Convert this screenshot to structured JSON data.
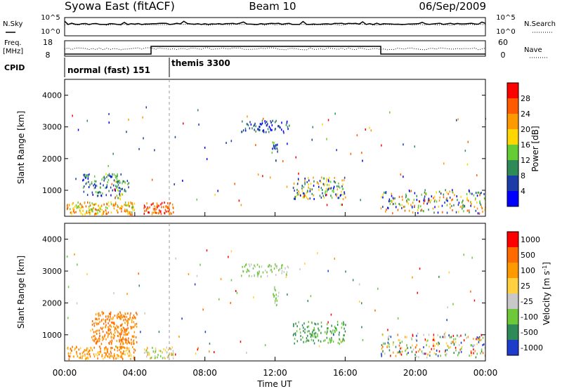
{
  "header": {
    "title_left": "Syowa East (fitACF)",
    "title_center": "Beam 10",
    "title_right": "06/Sep/2009"
  },
  "noise_panel": {
    "left_label": "N.Sky",
    "right_label": "N.Search",
    "left_ticks": [
      "10^5",
      "10^0"
    ],
    "right_ticks": [
      "10^5",
      "10^0"
    ]
  },
  "freq_panel": {
    "left_label_line1": "Freq.",
    "left_label_line2": "[MHz]",
    "left_ticks": [
      "18",
      "8"
    ],
    "right_label": "Nave",
    "right_ticks": [
      "60",
      "0"
    ]
  },
  "cpid_panel": {
    "label": "CPID",
    "programs": [
      {
        "name": "normal (fast) 151",
        "start_hour": 0
      },
      {
        "name": "themis 3300",
        "start_hour": 6
      }
    ]
  },
  "chart_data": [
    {
      "type": "heatmap",
      "panel": "power",
      "ylabel": "Slant Range [km]",
      "ylim": [
        180,
        4500
      ],
      "yticks": [
        1000,
        2000,
        3000,
        4000
      ],
      "xlim": [
        0,
        24
      ],
      "colorbar": {
        "label": "Power [dB]",
        "ticks": [
          "4",
          "8",
          "12",
          "16",
          "20",
          "24",
          "28"
        ],
        "colors": [
          "#0000ff",
          "#1e3ca8",
          "#2e8b57",
          "#66cc33",
          "#ffd700",
          "#ff9900",
          "#ff5a00",
          "#ff0000"
        ]
      },
      "regions": [
        {
          "t0": 0.1,
          "t1": 4.0,
          "r0": 220,
          "r1": 620,
          "dens": 0.9,
          "lvl": [
            3,
            6
          ]
        },
        {
          "t0": 1.0,
          "t1": 3.2,
          "r0": 800,
          "r1": 1500,
          "dens": 0.5,
          "lvl": [
            0,
            3
          ]
        },
        {
          "t0": 2.8,
          "t1": 3.7,
          "r0": 700,
          "r1": 1300,
          "dens": 0.5,
          "lvl": [
            1,
            4
          ]
        },
        {
          "t0": 4.5,
          "t1": 6.2,
          "r0": 230,
          "r1": 600,
          "dens": 0.9,
          "lvl": [
            5,
            7
          ]
        },
        {
          "t0": 10.0,
          "t1": 12.8,
          "r0": 2800,
          "r1": 3200,
          "dens": 0.5,
          "lvl": [
            0,
            2
          ]
        },
        {
          "t0": 11.8,
          "t1": 12.2,
          "r0": 1900,
          "r1": 2500,
          "dens": 0.6,
          "lvl": [
            0,
            3
          ]
        },
        {
          "t0": 13.0,
          "t1": 16.0,
          "r0": 700,
          "r1": 1400,
          "dens": 0.5,
          "lvl": [
            0,
            5
          ]
        },
        {
          "t0": 18.0,
          "t1": 24.0,
          "r0": 250,
          "r1": 1000,
          "dens": 0.35,
          "lvl": [
            0,
            6
          ]
        }
      ]
    },
    {
      "type": "heatmap",
      "panel": "velocity",
      "ylabel": "Slant Range [km]",
      "ylim": [
        180,
        4500
      ],
      "yticks": [
        1000,
        2000,
        3000,
        4000
      ],
      "xlim": [
        0,
        24
      ],
      "xlabel": "Time UT",
      "xticks": [
        "00:00",
        "04:00",
        "08:00",
        "12:00",
        "16:00",
        "20:00",
        "00:00"
      ],
      "colorbar": {
        "label": "Velocity [m s^-1]",
        "ticks": [
          "1000",
          "500",
          "100",
          "25",
          "-25",
          "-100",
          "-500",
          "-1000"
        ],
        "colors": [
          "#1e3ccc",
          "#2e8b57",
          "#6dc93a",
          "#c8c8c8",
          "#ffd040",
          "#ff9900",
          "#ff6a00",
          "#ff0000"
        ]
      },
      "regions": [
        {
          "t0": 0.1,
          "t1": 4.0,
          "r0": 220,
          "r1": 620,
          "dens": 0.9,
          "lvl": [
            4,
            6
          ]
        },
        {
          "t0": 1.5,
          "t1": 4.1,
          "r0": 700,
          "r1": 1700,
          "dens": 0.85,
          "lvl": [
            5,
            6
          ]
        },
        {
          "t0": 4.5,
          "t1": 6.2,
          "r0": 230,
          "r1": 600,
          "dens": 0.7,
          "lvl": [
            2,
            5
          ]
        },
        {
          "t0": 10.0,
          "t1": 12.8,
          "r0": 2800,
          "r1": 3200,
          "dens": 0.5,
          "lvl": [
            2,
            3
          ]
        },
        {
          "t0": 11.8,
          "t1": 12.2,
          "r0": 1900,
          "r1": 2500,
          "dens": 0.6,
          "lvl": [
            2,
            3
          ]
        },
        {
          "t0": 13.0,
          "t1": 16.0,
          "r0": 700,
          "r1": 1400,
          "dens": 0.5,
          "lvl": [
            1,
            2
          ]
        },
        {
          "t0": 18.0,
          "t1": 24.0,
          "r0": 250,
          "r1": 1000,
          "dens": 0.35,
          "lvl": [
            0,
            7
          ]
        }
      ]
    }
  ]
}
